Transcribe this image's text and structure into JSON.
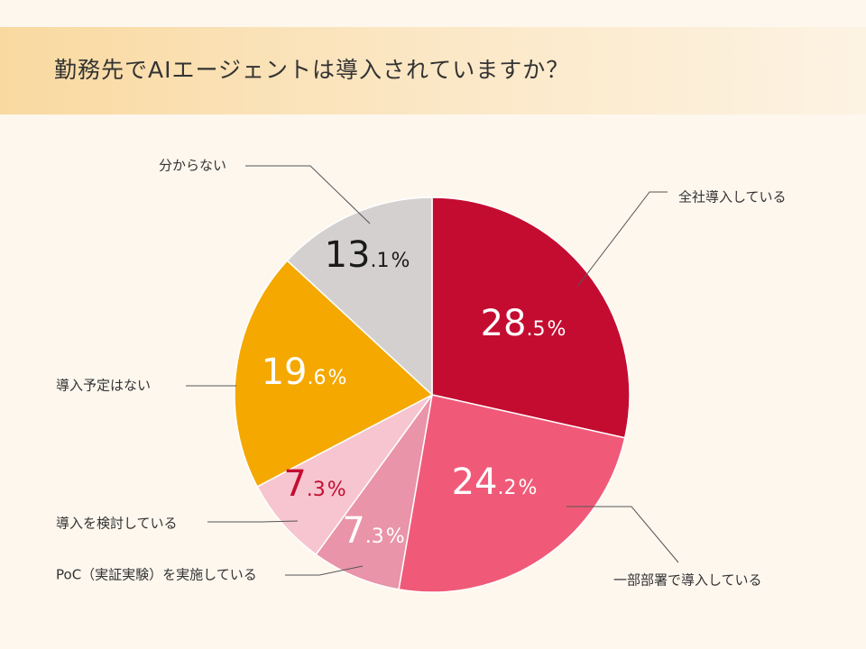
{
  "title": "勤務先でAIエージェントは導入されていますか？",
  "colors": {
    "background": "#fdf7ee",
    "title_band": "#f9d9a0",
    "leader": "#555555"
  },
  "chart_data": {
    "type": "pie",
    "start": "12 o'clock",
    "direction": "clockwise",
    "slices": [
      {
        "label": "全社導入している",
        "value": 28.5,
        "int": "28",
        "dec": ".5",
        "color": "#c40c31",
        "text_color": "#ffffff"
      },
      {
        "label": "一部部署で導入している",
        "value": 24.2,
        "int": "24",
        "dec": ".2",
        "color": "#f05a78",
        "text_color": "#ffffff"
      },
      {
        "label": "PoC（実証実験）を実施している",
        "value": 7.3,
        "int": "7",
        "dec": ".3",
        "color": "#e994a8",
        "text_color": "#ffffff"
      },
      {
        "label": "導入を検討している",
        "value": 7.3,
        "int": "7",
        "dec": ".3",
        "color": "#f6c5d0",
        "text_color": "#c40c31"
      },
      {
        "label": "導入予定はない",
        "value": 19.6,
        "int": "19",
        "dec": ".6",
        "color": "#f4a800",
        "text_color": "#ffffff"
      },
      {
        "label": "分からない",
        "value": 13.1,
        "int": "13",
        "dec": ".1",
        "color": "#d5d0d0",
        "text_color": "#1a1a1a"
      }
    ],
    "percent_sign": "%"
  }
}
